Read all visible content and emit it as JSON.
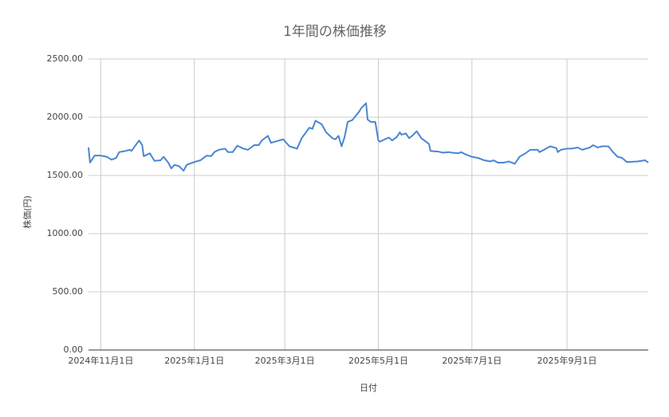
{
  "chart_data": {
    "type": "line",
    "title": "1年間の株価推移",
    "x_label": "日付",
    "y_label": "株価(円)",
    "x": [
      "2024-10-24",
      "2024-10-25",
      "2024-10-28",
      "2024-11-01",
      "2024-11-05",
      "2024-11-08",
      "2024-11-11",
      "2024-11-13",
      "2024-11-17",
      "2024-11-20",
      "2024-11-21",
      "2024-11-26",
      "2024-11-28",
      "2024-11-29",
      "2024-12-03",
      "2024-12-06",
      "2024-12-10",
      "2024-12-12",
      "2024-12-15",
      "2024-12-17",
      "2024-12-19",
      "2024-12-22",
      "2024-12-25",
      "2024-12-27",
      "2025-01-01",
      "2025-01-05",
      "2025-01-09",
      "2025-01-12",
      "2025-01-14",
      "2025-01-17",
      "2025-01-21",
      "2025-01-23",
      "2025-01-26",
      "2025-01-29",
      "2025-02-02",
      "2025-02-05",
      "2025-02-09",
      "2025-02-12",
      "2025-02-14",
      "2025-02-18",
      "2025-02-20",
      "2025-02-24",
      "2025-02-28",
      "2025-03-02",
      "2025-03-04",
      "2025-03-09",
      "2025-03-12",
      "2025-03-17",
      "2025-03-19",
      "2025-03-21",
      "2025-03-25",
      "2025-03-28",
      "2025-04-01",
      "2025-04-03",
      "2025-04-05",
      "2025-04-07",
      "2025-04-09",
      "2025-04-11",
      "2025-04-14",
      "2025-04-18",
      "2025-04-20",
      "2025-04-23",
      "2025-04-24",
      "2025-04-26",
      "2025-04-29",
      "2025-05-01",
      "2025-05-02",
      "2025-05-06",
      "2025-05-08",
      "2025-05-10",
      "2025-05-13",
      "2025-05-15",
      "2025-05-16",
      "2025-05-19",
      "2025-05-21",
      "2025-05-23",
      "2025-05-26",
      "2025-05-29",
      "2025-06-03",
      "2025-06-04",
      "2025-06-09",
      "2025-06-12",
      "2025-06-16",
      "2025-06-18",
      "2025-06-22",
      "2025-06-24",
      "2025-06-27",
      "2025-07-01",
      "2025-07-05",
      "2025-07-09",
      "2025-07-13",
      "2025-07-15",
      "2025-07-18",
      "2025-07-22",
      "2025-07-25",
      "2025-07-29",
      "2025-08-01",
      "2025-08-05",
      "2025-08-08",
      "2025-08-13",
      "2025-08-14",
      "2025-08-17",
      "2025-08-21",
      "2025-08-25",
      "2025-08-26",
      "2025-08-28",
      "2025-09-01",
      "2025-09-04",
      "2025-09-08",
      "2025-09-11",
      "2025-09-16",
      "2025-09-18",
      "2025-09-21",
      "2025-09-24",
      "2025-09-28",
      "2025-10-01",
      "2025-10-04",
      "2025-10-07",
      "2025-10-10",
      "2025-10-17",
      "2025-10-22",
      "2025-10-24"
    ],
    "series": [
      {
        "name": "株価",
        "color": "#4a86d0",
        "values": [
          1740,
          1610,
          1670,
          1670,
          1660,
          1635,
          1650,
          1700,
          1710,
          1720,
          1710,
          1800,
          1760,
          1665,
          1690,
          1625,
          1630,
          1660,
          1610,
          1560,
          1590,
          1580,
          1540,
          1590,
          1615,
          1630,
          1670,
          1665,
          1700,
          1720,
          1730,
          1700,
          1700,
          1755,
          1730,
          1720,
          1760,
          1760,
          1800,
          1840,
          1780,
          1795,
          1810,
          1780,
          1750,
          1730,
          1820,
          1910,
          1900,
          1970,
          1940,
          1870,
          1820,
          1810,
          1840,
          1750,
          1830,
          1960,
          1975,
          2040,
          2080,
          2120,
          1980,
          1960,
          1960,
          1800,
          1790,
          1815,
          1825,
          1800,
          1830,
          1870,
          1850,
          1860,
          1820,
          1840,
          1880,
          1820,
          1770,
          1710,
          1705,
          1695,
          1700,
          1695,
          1690,
          1700,
          1680,
          1660,
          1650,
          1630,
          1620,
          1630,
          1610,
          1610,
          1620,
          1600,
          1660,
          1690,
          1720,
          1720,
          1700,
          1720,
          1750,
          1735,
          1700,
          1720,
          1730,
          1730,
          1740,
          1720,
          1740,
          1760,
          1740,
          1750,
          1750,
          1700,
          1660,
          1650,
          1615,
          1620,
          1630,
          1610
        ]
      }
    ],
    "xlim": [
      "2024-10-24",
      "2025-10-24"
    ],
    "xticks": [
      {
        "value": "2024-11-01",
        "label": "2024年11月1日"
      },
      {
        "value": "2025-01-01",
        "label": "2025年1月1日"
      },
      {
        "value": "2025-03-01",
        "label": "2025年3月1日"
      },
      {
        "value": "2025-05-01",
        "label": "2025年5月1日"
      },
      {
        "value": "2025-07-01",
        "label": "2025年7月1日"
      },
      {
        "value": "2025-09-01",
        "label": "2025年9月1日"
      }
    ],
    "ylim": [
      0,
      2500
    ],
    "yticks": [
      {
        "value": 0,
        "label": "0.00"
      },
      {
        "value": 500,
        "label": "500.00"
      },
      {
        "value": 1000,
        "label": "1000.00"
      },
      {
        "value": 1500,
        "label": "1500.00"
      },
      {
        "value": 2000,
        "label": "2000.00"
      },
      {
        "value": 2500,
        "label": "2500.00"
      }
    ],
    "grid": true
  }
}
